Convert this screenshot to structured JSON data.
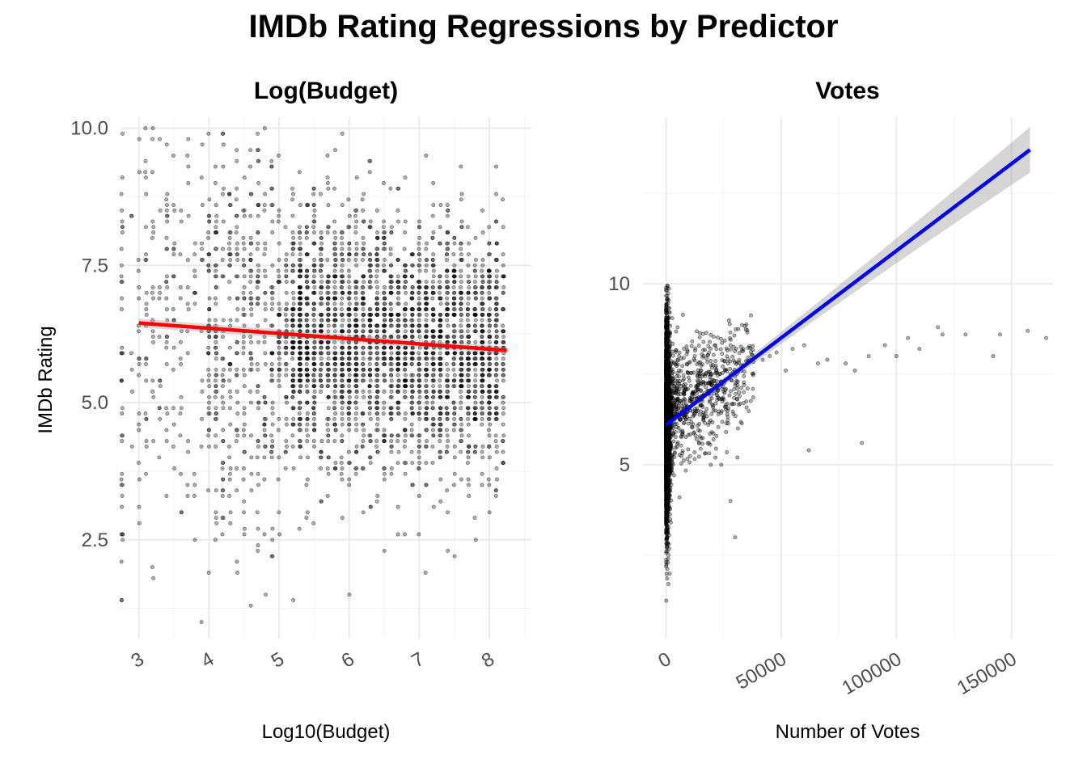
{
  "title": "IMDb Rating Regressions by Predictor",
  "chart_data": [
    {
      "type": "scatter",
      "title": "Log(Budget)",
      "xlabel": "Log10(Budget)",
      "ylabel": "IMDb Rating",
      "xlim": [
        2.75,
        8.6
      ],
      "ylim": [
        0.7,
        10.2
      ],
      "x_ticks": [
        3,
        4,
        5,
        6,
        7,
        8
      ],
      "x_tick_labels": [
        "3",
        "4",
        "5",
        "6",
        "7",
        "8"
      ],
      "y_ticks": [
        2.5,
        5.0,
        7.5,
        10.0
      ],
      "y_tick_labels": [
        "2.5",
        "5.0",
        "7.5",
        "10.0"
      ],
      "grid": true,
      "regression": {
        "color": "#ff0000",
        "x": [
          3.0,
          8.25
        ],
        "y": [
          6.45,
          5.95
        ]
      },
      "point_color": "#000000"
    },
    {
      "type": "scatter",
      "title": "Votes",
      "xlabel": "Number of Votes",
      "ylabel": "",
      "xlim": [
        -10000,
        168000
      ],
      "ylim": [
        0.2,
        14.6
      ],
      "x_ticks": [
        0,
        50000,
        100000,
        150000
      ],
      "x_tick_labels": [
        "0",
        "50000",
        "100000",
        "150000"
      ],
      "y_ticks": [
        5,
        10
      ],
      "y_tick_labels": [
        "5",
        "10"
      ],
      "grid": true,
      "regression": {
        "color": "#0000ff",
        "x": [
          0,
          158000
        ],
        "y": [
          6.1,
          13.7
        ]
      },
      "point_color": "#000000"
    }
  ]
}
